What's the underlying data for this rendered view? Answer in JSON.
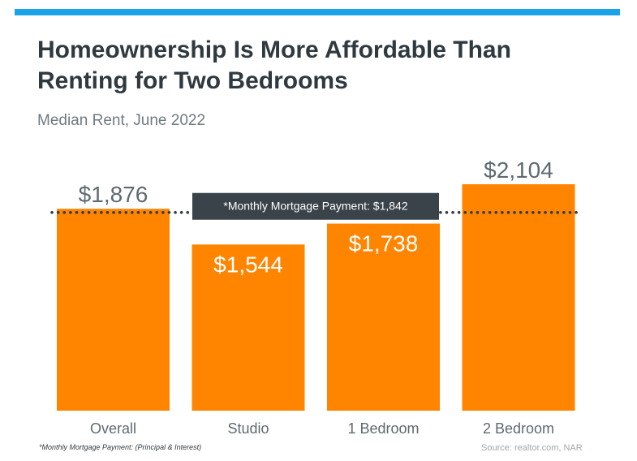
{
  "header": {
    "title_line1": "Homeownership Is More Affordable Than",
    "title_line2": "Renting for Two Bedrooms",
    "subtitle": "Median Rent, June 2022"
  },
  "chart_data": {
    "type": "bar",
    "title": "Homeownership Is More Affordable Than Renting for Two Bedrooms",
    "subtitle": "Median Rent, June 2022",
    "categories": [
      "Overall",
      "Studio",
      "1 Bedroom",
      "2 Bedroom"
    ],
    "values": [
      1876,
      1544,
      1738,
      2104
    ],
    "value_labels": [
      "$1,876",
      "$1,544",
      "$1,738",
      "$2,104"
    ],
    "label_position": [
      "above",
      "inside",
      "inside",
      "above"
    ],
    "bar_color": "#ff8400",
    "grid": false,
    "reference_line": {
      "value": 1842,
      "label": "*Monthly Mortgage Payment: $1,842",
      "style": "dotted"
    }
  },
  "footer": {
    "footnote": "*Monthly Mortgage Payment: (Principal & Interest)",
    "source": "Source: realtor.com, NAR"
  },
  "colors": {
    "accent_bar": "#1aa3e8",
    "bar": "#ff8400",
    "title": "#2f3940",
    "label_box": "#3a4349"
  }
}
